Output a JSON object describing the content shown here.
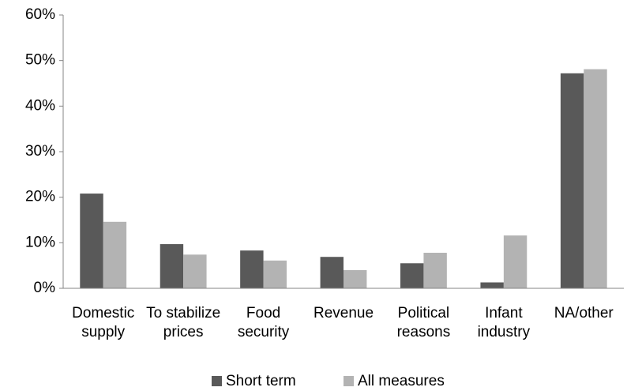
{
  "chart_data": {
    "type": "bar",
    "categories": [
      "Domestic supply",
      "To stabilize prices",
      "Food security",
      "Revenue",
      "Political reasons",
      "Infant industry",
      "NA/other"
    ],
    "series": [
      {
        "name": "Short term",
        "color": "#595959",
        "values": [
          20.8,
          9.7,
          8.3,
          6.9,
          5.5,
          1.3,
          47.2
        ]
      },
      {
        "name": "All measures",
        "color": "#b3b3b3",
        "values": [
          14.6,
          7.4,
          6.1,
          4.0,
          7.8,
          11.6,
          48.1
        ]
      }
    ],
    "ylim": [
      0,
      60
    ],
    "yticks": [
      {
        "value": 0,
        "label": "0%"
      },
      {
        "value": 10,
        "label": "10%"
      },
      {
        "value": 20,
        "label": "20%"
      },
      {
        "value": 30,
        "label": "30%"
      },
      {
        "value": 40,
        "label": "40%"
      },
      {
        "value": 50,
        "label": "50%"
      },
      {
        "value": 60,
        "label": "60%"
      }
    ],
    "grid": false,
    "legend": "bottom"
  }
}
